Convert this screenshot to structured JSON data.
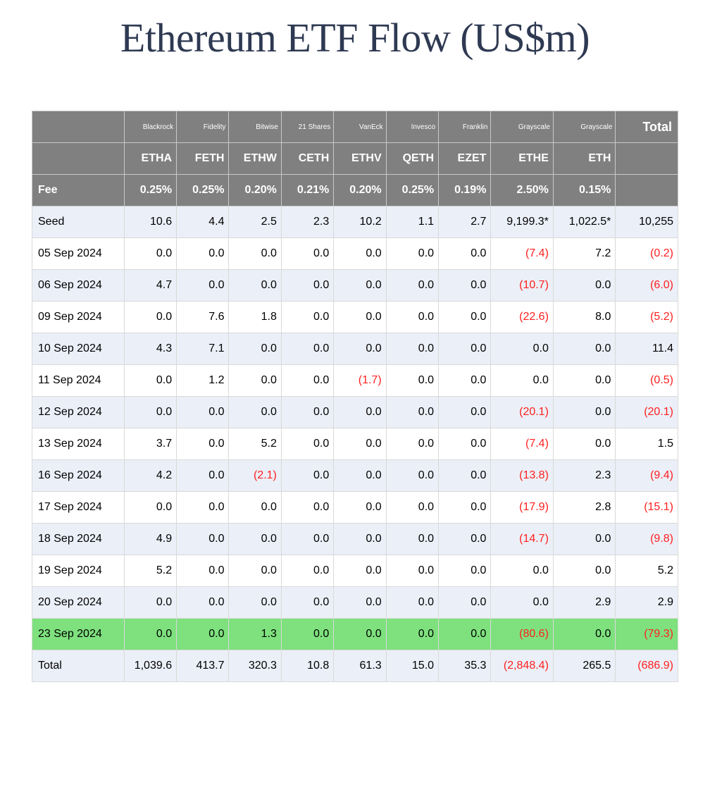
{
  "title": "Ethereum ETF Flow (US$m)",
  "table": {
    "type": "table",
    "colors": {
      "header_bg": "#808080",
      "header_fg": "#ffffff",
      "stripe_a": "#ebeff7",
      "stripe_b": "#ffffff",
      "highlight": "#7ee17e",
      "negative": "#ff2020",
      "border": "#d9d9d9",
      "text": "#000000",
      "title": "#2e3952"
    },
    "fonts": {
      "title_family": "Georgia",
      "title_size_pt": 44,
      "body_family": "system-ui",
      "body_size_pt": 12,
      "issuer_size_pt": 8
    },
    "col_widths": {
      "first": 130,
      "data": 74,
      "total": 88
    },
    "total_header": "Total",
    "fee_label": "Fee",
    "issuers": [
      "Blackrock",
      "Fidelity",
      "Bitwise",
      "21 Shares",
      "VanEck",
      "Invesco",
      "Franklin",
      "Grayscale",
      "Grayscale"
    ],
    "tickers": [
      "ETHA",
      "FETH",
      "ETHW",
      "CETH",
      "ETHV",
      "QETH",
      "EZET",
      "ETHE",
      "ETH"
    ],
    "fees": [
      "0.25%",
      "0.25%",
      "0.20%",
      "0.21%",
      "0.20%",
      "0.25%",
      "0.19%",
      "2.50%",
      "0.15%"
    ],
    "rows": [
      {
        "label": "Seed",
        "stripe": "a",
        "cells": [
          "10.6",
          "4.4",
          "2.5",
          "2.3",
          "10.2",
          "1.1",
          "2.7",
          "9,199.3*",
          "1,022.5*"
        ],
        "total": "10,255"
      },
      {
        "label": "05 Sep 2024",
        "stripe": "b",
        "cells": [
          "0.0",
          "0.0",
          "0.0",
          "0.0",
          "0.0",
          "0.0",
          "0.0",
          "(7.4)",
          "7.2"
        ],
        "total": "(0.2)"
      },
      {
        "label": "06 Sep 2024",
        "stripe": "a",
        "cells": [
          "4.7",
          "0.0",
          "0.0",
          "0.0",
          "0.0",
          "0.0",
          "0.0",
          "(10.7)",
          "0.0"
        ],
        "total": "(6.0)"
      },
      {
        "label": "09 Sep 2024",
        "stripe": "b",
        "cells": [
          "0.0",
          "7.6",
          "1.8",
          "0.0",
          "0.0",
          "0.0",
          "0.0",
          "(22.6)",
          "8.0"
        ],
        "total": "(5.2)"
      },
      {
        "label": "10 Sep 2024",
        "stripe": "a",
        "cells": [
          "4.3",
          "7.1",
          "0.0",
          "0.0",
          "0.0",
          "0.0",
          "0.0",
          "0.0",
          "0.0"
        ],
        "total": "11.4"
      },
      {
        "label": "11 Sep 2024",
        "stripe": "b",
        "cells": [
          "0.0",
          "1.2",
          "0.0",
          "0.0",
          "(1.7)",
          "0.0",
          "0.0",
          "0.0",
          "0.0"
        ],
        "total": "(0.5)"
      },
      {
        "label": "12 Sep 2024",
        "stripe": "a",
        "cells": [
          "0.0",
          "0.0",
          "0.0",
          "0.0",
          "0.0",
          "0.0",
          "0.0",
          "(20.1)",
          "0.0"
        ],
        "total": "(20.1)"
      },
      {
        "label": "13 Sep 2024",
        "stripe": "b",
        "cells": [
          "3.7",
          "0.0",
          "5.2",
          "0.0",
          "0.0",
          "0.0",
          "0.0",
          "(7.4)",
          "0.0"
        ],
        "total": "1.5"
      },
      {
        "label": "16 Sep 2024",
        "stripe": "a",
        "cells": [
          "4.2",
          "0.0",
          "(2.1)",
          "0.0",
          "0.0",
          "0.0",
          "0.0",
          "(13.8)",
          "2.3"
        ],
        "total": "(9.4)"
      },
      {
        "label": "17 Sep 2024",
        "stripe": "b",
        "cells": [
          "0.0",
          "0.0",
          "0.0",
          "0.0",
          "0.0",
          "0.0",
          "0.0",
          "(17.9)",
          "2.8"
        ],
        "total": "(15.1)"
      },
      {
        "label": "18 Sep 2024",
        "stripe": "a",
        "cells": [
          "4.9",
          "0.0",
          "0.0",
          "0.0",
          "0.0",
          "0.0",
          "0.0",
          "(14.7)",
          "0.0"
        ],
        "total": "(9.8)"
      },
      {
        "label": "19 Sep 2024",
        "stripe": "b",
        "cells": [
          "5.2",
          "0.0",
          "0.0",
          "0.0",
          "0.0",
          "0.0",
          "0.0",
          "0.0",
          "0.0"
        ],
        "total": "5.2"
      },
      {
        "label": "20 Sep 2024",
        "stripe": "a",
        "cells": [
          "0.0",
          "0.0",
          "0.0",
          "0.0",
          "0.0",
          "0.0",
          "0.0",
          "0.0",
          "2.9"
        ],
        "total": "2.9"
      },
      {
        "label": "23 Sep 2024",
        "stripe": "hl",
        "cells": [
          "0.0",
          "0.0",
          "1.3",
          "0.0",
          "0.0",
          "0.0",
          "0.0",
          "(80.6)",
          "0.0"
        ],
        "total": "(79.3)"
      },
      {
        "label": "Total",
        "stripe": "t",
        "cells": [
          "1,039.6",
          "413.7",
          "320.3",
          "10.8",
          "61.3",
          "15.0",
          "35.3",
          "(2,848.4)",
          "265.5"
        ],
        "total": "(686.9)"
      }
    ]
  }
}
